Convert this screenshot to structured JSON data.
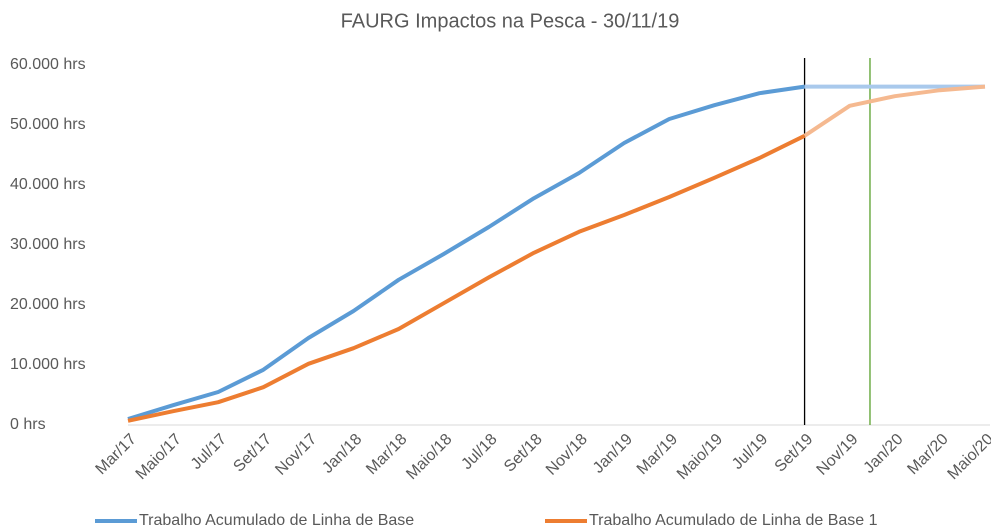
{
  "chart_data": {
    "type": "line",
    "title": "FAURG Impactos na Pesca - 30/11/19",
    "categories": [
      "Mar/17",
      "Maio/17",
      "Jul/17",
      "Set/17",
      "Nov/17",
      "Jan/18",
      "Mar/18",
      "Maio/18",
      "Jul/18",
      "Set/18",
      "Nov/18",
      "Jan/19",
      "Mar/19",
      "Maio/19",
      "Jul/19",
      "Set/19",
      "Nov/19",
      "Jan/20",
      "Mar/20",
      "Maio/20"
    ],
    "series": [
      {
        "name": "Trabalho Acumulado de Linha de Base",
        "color": "#5b9bd5",
        "faded_color": "#a9c9ec",
        "values": [
          1000,
          3300,
          5500,
          9200,
          14500,
          19000,
          24200,
          28500,
          33000,
          37800,
          42000,
          47000,
          51000,
          53300,
          55300,
          56400,
          56400,
          56400,
          56400,
          56400
        ]
      },
      {
        "name": "Trabalho Acumulado de Linha de Base 1",
        "color": "#ed7d31",
        "faded_color": "#f5b990",
        "values": [
          700,
          2300,
          3800,
          6300,
          10200,
          12800,
          16000,
          20300,
          24600,
          28700,
          32200,
          35000,
          38000,
          41200,
          44500,
          48200,
          53200,
          54800,
          55800,
          56400
        ]
      }
    ],
    "projection_start": 15,
    "markers": [
      {
        "x": 15,
        "color": "#000000"
      },
      {
        "x": 16.45,
        "color": "#5aa02c"
      }
    ],
    "ylim": [
      0,
      60000
    ],
    "yticks": [
      {
        "value": 0,
        "label": "0 hrs"
      },
      {
        "value": 10000,
        "label": "10.000 hrs"
      },
      {
        "value": 20000,
        "label": "20.000 hrs"
      },
      {
        "value": 30000,
        "label": "30.000 hrs"
      },
      {
        "value": 40000,
        "label": "40.000 hrs"
      },
      {
        "value": 50000,
        "label": "50.000 hrs"
      },
      {
        "value": 60000,
        "label": "60.000 hrs"
      }
    ],
    "grid": false,
    "legend": "bottom"
  }
}
